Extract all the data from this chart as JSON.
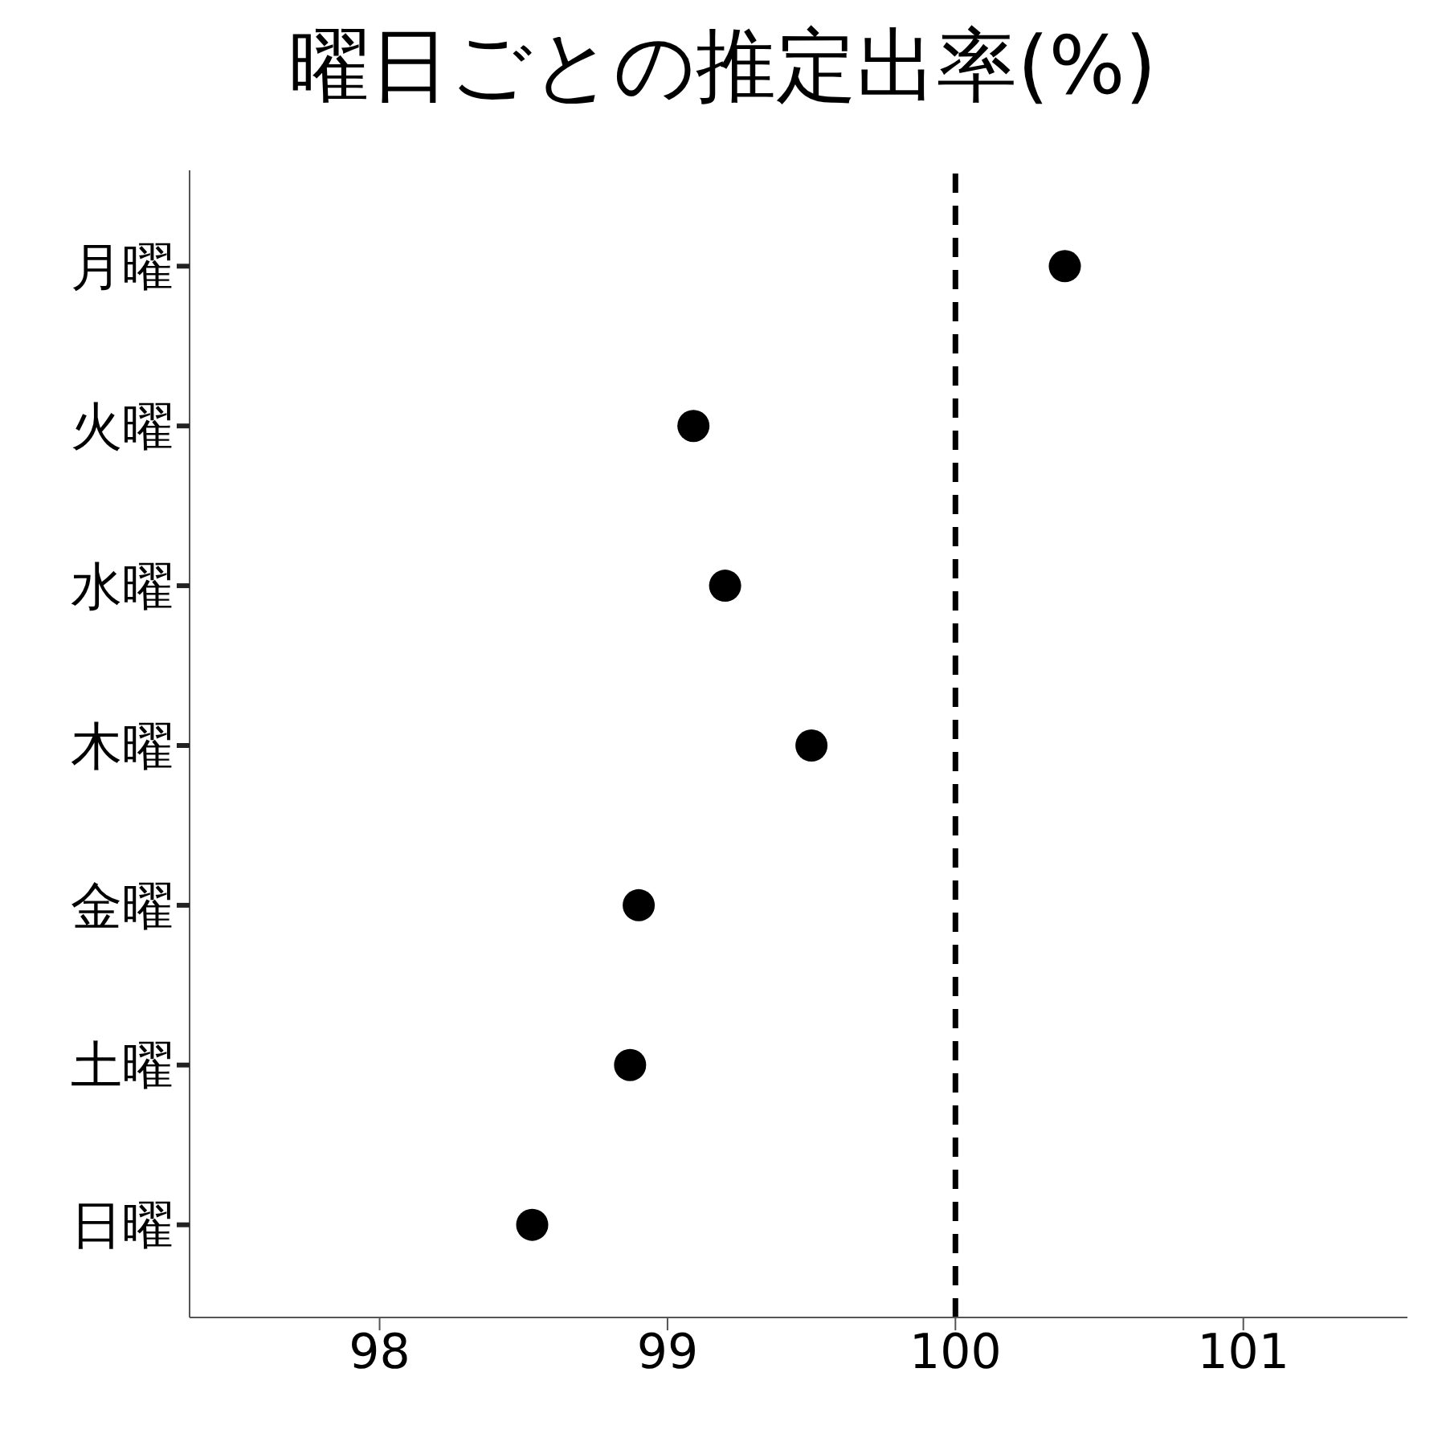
{
  "chart_data": {
    "type": "scatter",
    "title": "曜日ごとの推定出率(%)",
    "orientation": "horizontal",
    "categories": [
      "月曜",
      "火曜",
      "水曜",
      "木曜",
      "金曜",
      "土曜",
      "日曜"
    ],
    "series": [
      {
        "color": "#000000",
        "values": [
          100.38,
          99.09,
          99.2,
          99.5,
          98.9,
          98.87,
          98.53
        ]
      }
    ],
    "xlim": [
      97.34,
      101.57
    ],
    "xticks": [
      98,
      99,
      100,
      101
    ],
    "marker": "circle",
    "grid": false,
    "legend": false,
    "ref_lines": [
      {
        "axis": "x",
        "value": 100,
        "color": "#000000",
        "line_style": "dashed"
      }
    ]
  }
}
